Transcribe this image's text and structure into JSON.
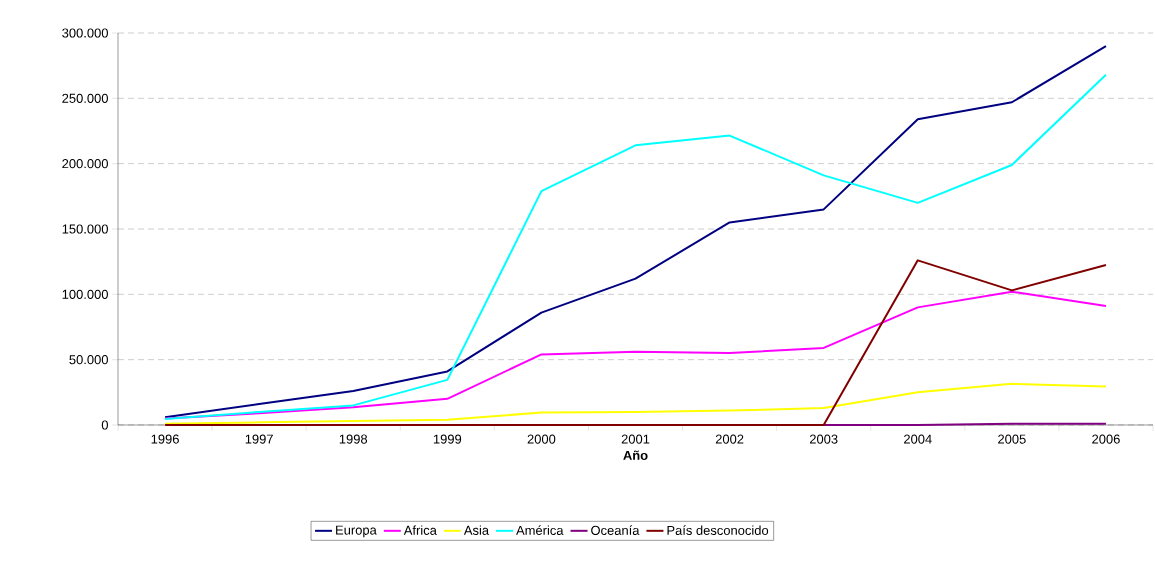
{
  "chart_data": {
    "type": "line",
    "xlabel": "**Año**",
    "categories": [
      "1996",
      "1997",
      "1998",
      "1999",
      "2000",
      "2001",
      "2002",
      "2003",
      "2004",
      "2005",
      "2006"
    ],
    "series": [
      {
        "name": "Europa",
        "color": "#000080",
        "values": [
          6000,
          16000,
          26000,
          41000,
          86000,
          112000,
          155000,
          165000,
          234000,
          247000,
          290000
        ]
      },
      {
        "name": "Africa",
        "color": "#ff00ff",
        "values": [
          5000,
          9000,
          13500,
          20000,
          54000,
          56000,
          55000,
          59000,
          90000,
          102000,
          91000
        ]
      },
      {
        "name": "Asia",
        "color": "#ffff00",
        "values": [
          1000,
          2000,
          3000,
          4000,
          9500,
          10000,
          11000,
          13000,
          25000,
          31500,
          29500
        ]
      },
      {
        "name": "América",
        "color": "#00ffff",
        "values": [
          4500,
          10000,
          15000,
          34500,
          179000,
          214000,
          221500,
          191000,
          170000,
          199000,
          268000
        ]
      },
      {
        "name": "Oceanía",
        "color": "#800080",
        "values": [
          null,
          null,
          null,
          null,
          null,
          null,
          null,
          0,
          0,
          1000,
          1000
        ]
      },
      {
        "name": "País desconocido",
        "color": "#800000",
        "values": [
          0,
          0,
          0,
          0,
          0,
          0,
          0,
          0,
          126000,
          103000,
          122500
        ]
      }
    ],
    "ylim": [
      0,
      300000
    ],
    "yticks": [
      {
        "value": 0,
        "label": "0"
      },
      {
        "value": 50000,
        "label": "50.000"
      },
      {
        "value": 100000,
        "label": "100.000"
      },
      {
        "value": 150000,
        "label": "150.000"
      },
      {
        "value": 200000,
        "label": "200.000"
      },
      {
        "value": 250000,
        "label": "250.000"
      },
      {
        "value": 300000,
        "label": "300.000"
      }
    ],
    "grid": "y",
    "legend": "bottom",
    "marker": "none",
    "line_style": "solid"
  }
}
